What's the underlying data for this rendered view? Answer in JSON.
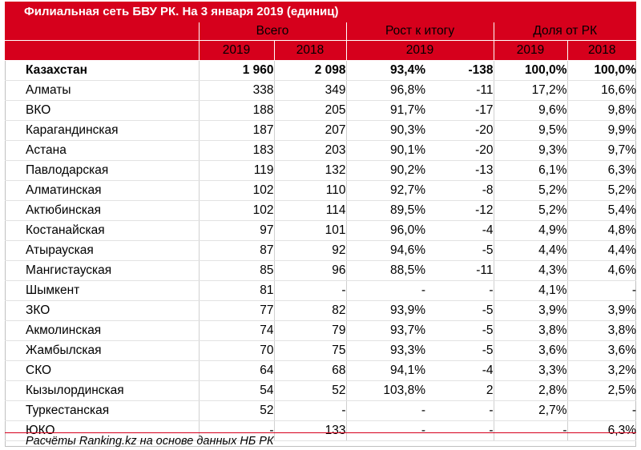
{
  "title": "Филиальная сеть БВУ РК. На 3 января 2019 (единиц)",
  "headers": {
    "group_total": "Всего",
    "group_growth": "Рост к итогу",
    "group_share": "Доля от РК",
    "year_2019": "2019",
    "year_2018": "2018",
    "growth_year": "2019"
  },
  "rows": [
    {
      "region": "Казахстан",
      "v2019": "1 960",
      "v2018": "2 098",
      "growth_pct": "93,4%",
      "growth_abs": "-138",
      "share2019": "100,0%",
      "share2018": "100,0%"
    },
    {
      "region": "Алматы",
      "v2019": "338",
      "v2018": "349",
      "growth_pct": "96,8%",
      "growth_abs": "-11",
      "share2019": "17,2%",
      "share2018": "16,6%"
    },
    {
      "region": "ВКО",
      "v2019": "188",
      "v2018": "205",
      "growth_pct": "91,7%",
      "growth_abs": "-17",
      "share2019": "9,6%",
      "share2018": "9,8%"
    },
    {
      "region": "Карагандинская",
      "v2019": "187",
      "v2018": "207",
      "growth_pct": "90,3%",
      "growth_abs": "-20",
      "share2019": "9,5%",
      "share2018": "9,9%"
    },
    {
      "region": "Астана",
      "v2019": "183",
      "v2018": "203",
      "growth_pct": "90,1%",
      "growth_abs": "-20",
      "share2019": "9,3%",
      "share2018": "9,7%"
    },
    {
      "region": "Павлодарская",
      "v2019": "119",
      "v2018": "132",
      "growth_pct": "90,2%",
      "growth_abs": "-13",
      "share2019": "6,1%",
      "share2018": "6,3%"
    },
    {
      "region": "Алматинская",
      "v2019": "102",
      "v2018": "110",
      "growth_pct": "92,7%",
      "growth_abs": "-8",
      "share2019": "5,2%",
      "share2018": "5,2%"
    },
    {
      "region": "Актюбинская",
      "v2019": "102",
      "v2018": "114",
      "growth_pct": "89,5%",
      "growth_abs": "-12",
      "share2019": "5,2%",
      "share2018": "5,4%"
    },
    {
      "region": "Костанайская",
      "v2019": "97",
      "v2018": "101",
      "growth_pct": "96,0%",
      "growth_abs": "-4",
      "share2019": "4,9%",
      "share2018": "4,8%"
    },
    {
      "region": "Атырауская",
      "v2019": "87",
      "v2018": "92",
      "growth_pct": "94,6%",
      "growth_abs": "-5",
      "share2019": "4,4%",
      "share2018": "4,4%"
    },
    {
      "region": "Мангистауская",
      "v2019": "85",
      "v2018": "96",
      "growth_pct": "88,5%",
      "growth_abs": "-11",
      "share2019": "4,3%",
      "share2018": "4,6%"
    },
    {
      "region": "Шымкент",
      "v2019": "81",
      "v2018": "-",
      "growth_pct": "-",
      "growth_abs": "-",
      "share2019": "4,1%",
      "share2018": "-"
    },
    {
      "region": "ЗКО",
      "v2019": "77",
      "v2018": "82",
      "growth_pct": "93,9%",
      "growth_abs": "-5",
      "share2019": "3,9%",
      "share2018": "3,9%"
    },
    {
      "region": "Акмолинская",
      "v2019": "74",
      "v2018": "79",
      "growth_pct": "93,7%",
      "growth_abs": "-5",
      "share2019": "3,8%",
      "share2018": "3,8%"
    },
    {
      "region": "Жамбылская",
      "v2019": "70",
      "v2018": "75",
      "growth_pct": "93,3%",
      "growth_abs": "-5",
      "share2019": "3,6%",
      "share2018": "3,6%"
    },
    {
      "region": "СКО",
      "v2019": "64",
      "v2018": "68",
      "growth_pct": "94,1%",
      "growth_abs": "-4",
      "share2019": "3,3%",
      "share2018": "3,2%"
    },
    {
      "region": "Кызылординская",
      "v2019": "54",
      "v2018": "52",
      "growth_pct": "103,8%",
      "growth_abs": "2",
      "share2019": "2,8%",
      "share2018": "2,5%"
    },
    {
      "region": "Туркестанская",
      "v2019": "52",
      "v2018": "-",
      "growth_pct": "-",
      "growth_abs": "-",
      "share2019": "2,7%",
      "share2018": "-"
    },
    {
      "region": "ЮКО",
      "v2019": "-",
      "v2018": "133",
      "growth_pct": "-",
      "growth_abs": "-",
      "share2019": "-",
      "share2018": "6,3%"
    }
  ],
  "footer": "Расчёты Ranking.kz на основе данных НБ РК",
  "colors": {
    "accent": "#d6001c"
  }
}
